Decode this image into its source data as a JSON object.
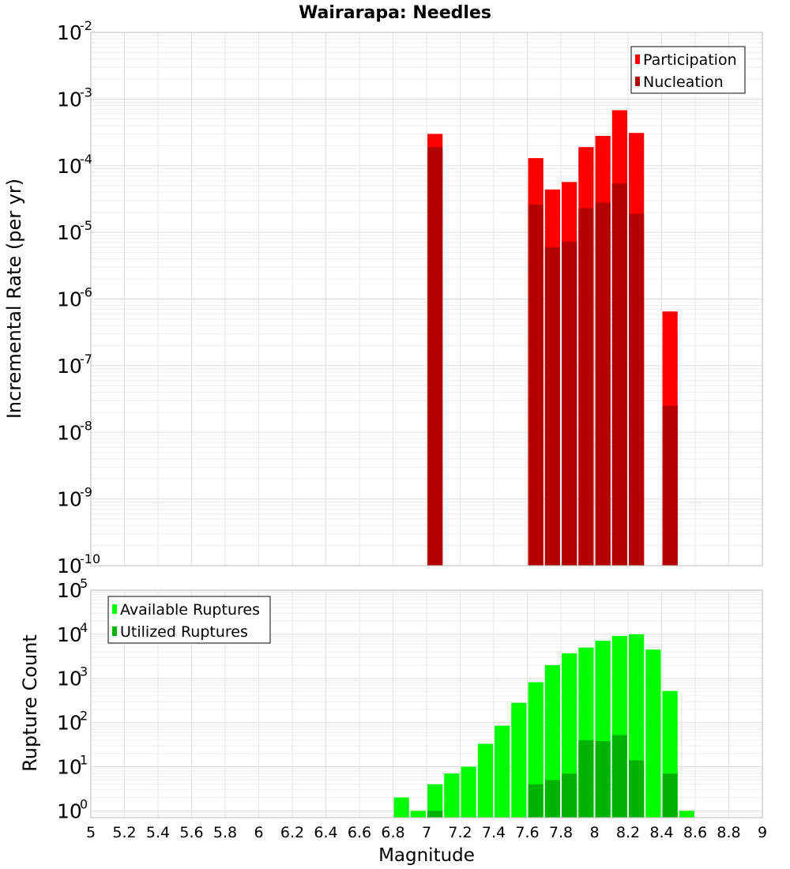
{
  "chart_data": [
    {
      "type": "bar",
      "title": "Wairarapa: Needles",
      "xlabel": "",
      "ylabel": "Incremental Rate (per yr)",
      "yscale": "log",
      "ylim": [
        1e-10,
        0.01
      ],
      "xlim": [
        5,
        9
      ],
      "bar_width": 0.1,
      "x": [
        7.05,
        7.65,
        7.75,
        7.85,
        7.95,
        8.05,
        8.15,
        8.25,
        8.45
      ],
      "series": [
        {
          "name": "Participation",
          "color": "#ff0000",
          "values": [
            0.0003,
            0.00013,
            4.4e-05,
            5.7e-05,
            0.00019,
            0.00028,
            0.00068,
            0.00031,
            6.5e-07
          ]
        },
        {
          "name": "Nucleation",
          "color": "#b30000",
          "values": [
            0.00019,
            2.6e-05,
            6e-06,
            7.2e-06,
            2.3e-05,
            2.8e-05,
            5.4e-05,
            1.9e-05,
            2.5e-08
          ]
        }
      ],
      "ytick_exponents": [
        "-10",
        "-9",
        "-8",
        "-7",
        "-6",
        "-5",
        "-4",
        "-3",
        "-2"
      ],
      "legend_position": "top-right"
    },
    {
      "type": "bar",
      "title": "",
      "xlabel": "Magnitude",
      "ylabel": "Rupture Count",
      "yscale": "log",
      "ylim": [
        0.7,
        100000.0
      ],
      "xlim": [
        5,
        9
      ],
      "bar_width": 0.1,
      "x": [
        6.85,
        6.95,
        7.05,
        7.15,
        7.25,
        7.35,
        7.45,
        7.55,
        7.65,
        7.75,
        7.85,
        7.95,
        8.05,
        8.15,
        8.25,
        8.35,
        8.45,
        8.55
      ],
      "series": [
        {
          "name": "Available Ruptures",
          "color": "#00ff00",
          "values": [
            2,
            1,
            4,
            7,
            10,
            33,
            85,
            280,
            820,
            2000,
            3700,
            5000,
            7100,
            9200,
            10000,
            4500,
            520,
            1
          ]
        },
        {
          "name": "Utilized Ruptures",
          "color": "#00b300",
          "values": [
            0,
            0,
            1,
            0,
            0,
            0,
            0,
            0,
            4,
            5,
            7,
            40,
            38,
            52,
            14,
            0,
            7,
            0
          ]
        }
      ],
      "ytick_exponents": [
        "0",
        "1",
        "2",
        "3",
        "4",
        "5"
      ],
      "xticks": [
        "5",
        "5.2",
        "5.4",
        "5.6",
        "5.8",
        "6",
        "6.2",
        "6.4",
        "6.6",
        "6.8",
        "7",
        "7.2",
        "7.4",
        "7.6",
        "7.8",
        "8",
        "8.2",
        "8.4",
        "8.6",
        "8.8",
        "9"
      ],
      "legend_position": "top-left"
    }
  ]
}
